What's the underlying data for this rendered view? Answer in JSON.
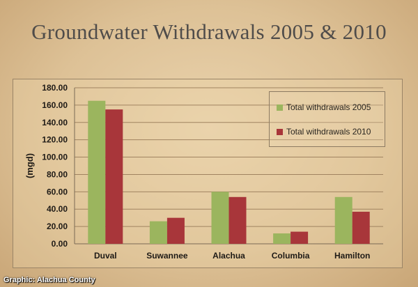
{
  "slide": {
    "title": "Groundwater Withdrawals 2005 & 2010",
    "credit": "Graphic: Alachua County"
  },
  "colors": {
    "series_2005": "#9bb55e",
    "series_2010": "#a8363a",
    "gridline": "#a08360",
    "text": "#1e1a16"
  },
  "chart_data": {
    "type": "bar",
    "title": "",
    "xlabel": "",
    "ylabel": "(mgd)",
    "categories": [
      "Duval",
      "Suwannee",
      "Alachua",
      "Columbia",
      "Hamilton"
    ],
    "series": [
      {
        "name": "Total withdrawals 2005",
        "values": [
          165,
          26,
          60,
          12,
          54
        ]
      },
      {
        "name": "Total withdrawals 2010",
        "values": [
          155,
          30,
          54,
          14,
          37
        ]
      }
    ],
    "ylim": [
      0,
      180
    ],
    "ytick_labels": [
      "0.00",
      "20.00",
      "40.00",
      "60.00",
      "80.00",
      "100.00",
      "120.00",
      "140.00",
      "160.00",
      "180.00"
    ],
    "grid": true,
    "legend_position": "top-right"
  }
}
